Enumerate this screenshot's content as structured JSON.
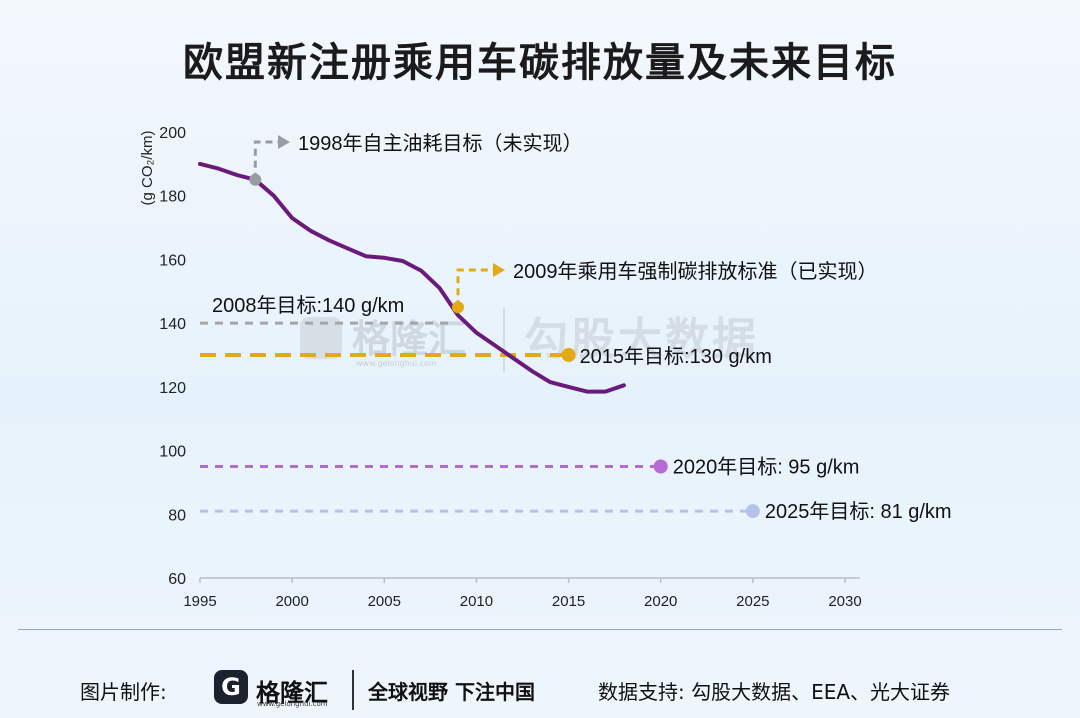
{
  "title": "欧盟新注册乘用车碳排放量及未来目标",
  "chart_data": {
    "type": "line",
    "ylabel": "(g CO₂/km)",
    "xlim": [
      1995,
      2030
    ],
    "ylim": [
      60,
      200
    ],
    "xticks": [
      1995,
      2000,
      2005,
      2010,
      2015,
      2020,
      2025,
      2030
    ],
    "yticks": [
      60,
      80,
      100,
      120,
      140,
      160,
      180,
      200
    ],
    "grid": false,
    "series": [
      {
        "color": "#6a1a7a",
        "points": [
          [
            1995,
            190
          ],
          [
            1996,
            188.5
          ],
          [
            1997,
            186.5
          ],
          [
            1998,
            185
          ],
          [
            1999,
            180
          ],
          [
            2000,
            173
          ],
          [
            2001,
            169
          ],
          [
            2002,
            166
          ],
          [
            2003,
            163.5
          ],
          [
            2004,
            161
          ],
          [
            2005,
            160.5
          ],
          [
            2006,
            159.5
          ],
          [
            2007,
            156.5
          ],
          [
            2008,
            151
          ],
          [
            2009,
            142.5
          ],
          [
            2010,
            137
          ],
          [
            2011,
            133
          ],
          [
            2012,
            129
          ],
          [
            2013,
            125
          ],
          [
            2014,
            121.5
          ],
          [
            2015,
            120
          ],
          [
            2016,
            118.5
          ],
          [
            2017,
            118.5
          ],
          [
            2018,
            120.5
          ]
        ]
      }
    ],
    "annotations": [
      {
        "text": "1998年自主油耗目标（未实现）",
        "x": 1998,
        "y": 185,
        "color": "#9a9ca4",
        "style": "elbow-arrow"
      },
      {
        "text": "2009年乘用车强制碳排放标准（已实现）",
        "x": 2009,
        "y": 145,
        "color": "#e2ab14",
        "style": "elbow-arrow"
      }
    ],
    "targets": [
      {
        "label": "2008年目标:140 g/km",
        "value": 140,
        "x_end": 2008.5,
        "color": "#a6a6a6",
        "marker": "none"
      },
      {
        "label": "2015年目标:130 g/km",
        "value": 130,
        "x_end": 2015,
        "color": "#e2ab14",
        "marker": "dot"
      },
      {
        "label": "2020年目标:  95 g/km",
        "value": 95,
        "x_end": 2020,
        "color": "#b56ad4",
        "marker": "dot"
      },
      {
        "label": "2025年目标:  81 g/km",
        "value": 81,
        "x_end": 2025,
        "color": "#b6c2ec",
        "marker": "dot"
      }
    ]
  },
  "watermark": {
    "brand": "格隆汇",
    "url": "www.gelonghui.com",
    "text": "勾股大数据"
  },
  "footer": {
    "made_by": "图片制作:",
    "logo_glyph": "G",
    "brand": "格隆汇",
    "brand_url": "www.gelonghui.com",
    "slogan": "全球视野 下注中国",
    "support": "数据支持:  勾股大数据、EEA、光大证券"
  }
}
